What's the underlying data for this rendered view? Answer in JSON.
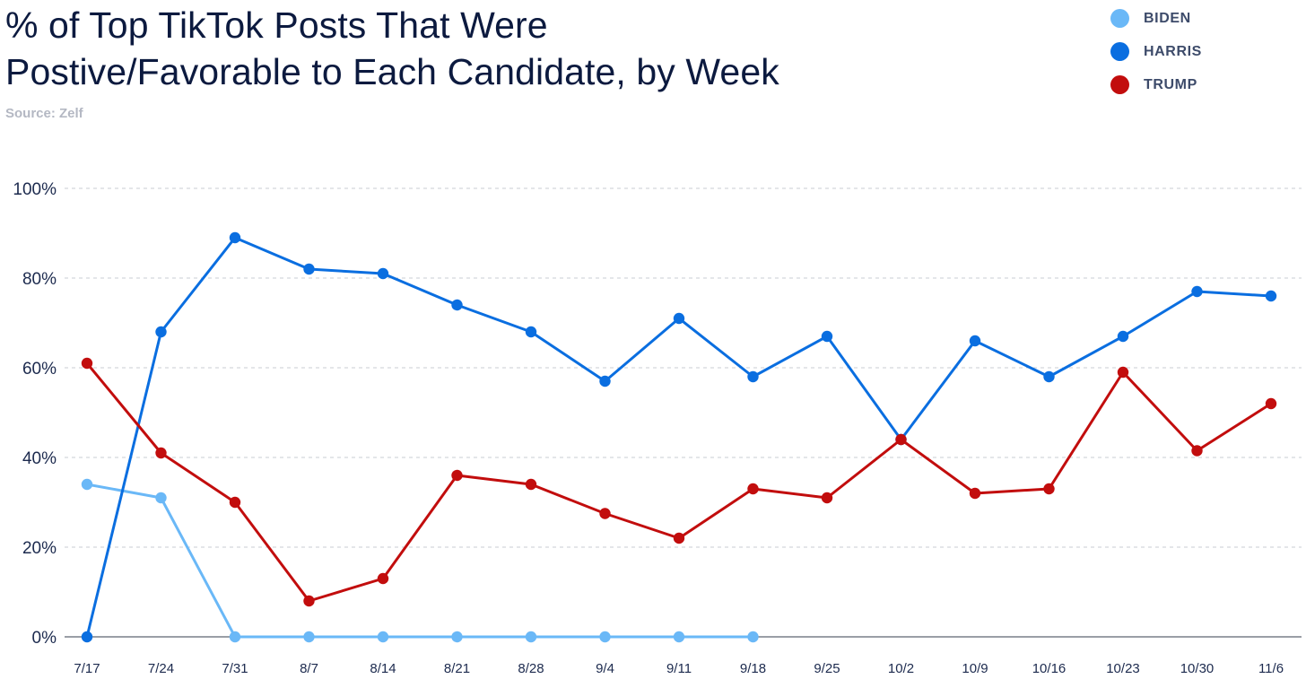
{
  "chart_data": {
    "type": "line",
    "title_lines": [
      "% of Top TikTok Posts That Were",
      "Postive/Favorable to Each Candidate, by Week"
    ],
    "source": "Source: Zelf",
    "categories": [
      "7/17",
      "7/24",
      "7/31",
      "8/7",
      "8/14",
      "8/21",
      "8/28",
      "9/4",
      "9/11",
      "9/18",
      "9/25",
      "10/2",
      "10/9",
      "10/16",
      "10/23",
      "10/30",
      "11/6"
    ],
    "y_ticks": [
      "0%",
      "20%",
      "40%",
      "60%",
      "80%",
      "100%"
    ],
    "ylim": [
      0,
      100
    ],
    "xlabel": "",
    "ylabel": "",
    "grid": true,
    "legend_position": "top-right",
    "series": [
      {
        "name": "BIDEN",
        "color": "#6ab8f7",
        "values": [
          34,
          31,
          0,
          0,
          0,
          0,
          0,
          0,
          0,
          0,
          null,
          null,
          null,
          null,
          null,
          null,
          null
        ]
      },
      {
        "name": "HARRIS",
        "color": "#0a6ee0",
        "values": [
          0,
          68,
          89,
          82,
          81,
          74,
          68,
          57,
          71,
          58,
          67,
          44,
          66,
          58,
          67,
          77,
          76
        ]
      },
      {
        "name": "TRUMP",
        "color": "#c20d0d",
        "values": [
          61,
          41,
          30,
          8,
          13,
          36,
          34,
          27.5,
          22,
          33,
          31,
          44,
          32,
          33,
          59,
          41.5,
          52
        ]
      }
    ]
  }
}
